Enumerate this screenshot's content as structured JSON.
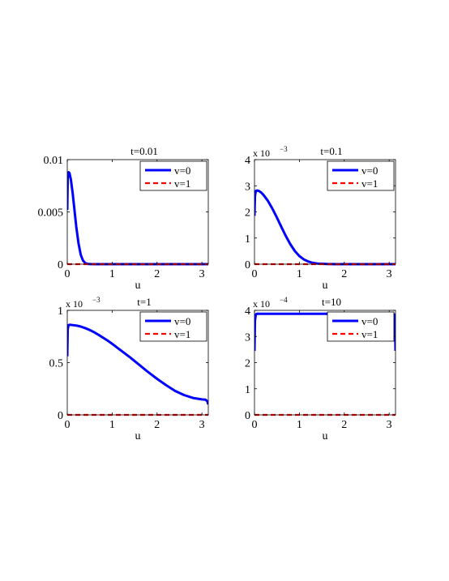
{
  "chart_data": [
    {
      "type": "line",
      "title": "t=0.01",
      "xlabel": "u",
      "ylabel": "",
      "xlim": [
        0,
        3.1416
      ],
      "ylim": [
        0,
        0.01
      ],
      "exponent_label": "",
      "xticks": [
        0,
        1,
        2,
        3
      ],
      "xtick_labels": [
        "0",
        "1",
        "2",
        "3"
      ],
      "yticks": [
        0,
        0.005,
        0.01
      ],
      "ytick_labels": [
        "0",
        "0.005",
        "0.01"
      ],
      "legend_position": "top-right",
      "series": [
        {
          "name": "v=0",
          "color": "#0000ff",
          "style": "solid",
          "x": [
            0,
            0.01,
            0.03,
            0.05,
            0.08,
            0.12,
            0.16,
            0.2,
            0.25,
            0.3,
            0.35,
            0.4,
            0.45,
            0.5,
            0.6,
            0.8,
            1.0,
            1.5,
            2.0,
            2.5,
            3.0,
            3.1416
          ],
          "y": [
            0.0052,
            0.0082,
            0.0088,
            0.0087,
            0.0081,
            0.0068,
            0.0052,
            0.0036,
            0.002,
            0.0009,
            0.00035,
            0.0001,
            3e-05,
            1e-05,
            0,
            0,
            0,
            0,
            0,
            0,
            0,
            0
          ]
        },
        {
          "name": "v=1",
          "color": "#ff0000",
          "style": "dashed",
          "x": [
            0,
            3.1416
          ],
          "y": [
            0,
            0
          ]
        }
      ]
    },
    {
      "type": "line",
      "title": "t=0.1",
      "xlabel": "u",
      "ylabel": "",
      "xlim": [
        0,
        3.1416
      ],
      "ylim": [
        0,
        4
      ],
      "exponent_label": "x 10",
      "exponent_power": "−3",
      "xticks": [
        0,
        1,
        2,
        3
      ],
      "xtick_labels": [
        "0",
        "1",
        "2",
        "3"
      ],
      "yticks": [
        0,
        1,
        2,
        3,
        4
      ],
      "ytick_labels": [
        "0",
        "1",
        "2",
        "3",
        "4"
      ],
      "legend_position": "top-right",
      "series": [
        {
          "name": "v=0",
          "color": "#0000ff",
          "style": "solid",
          "x": [
            0,
            0.01,
            0.03,
            0.06,
            0.1,
            0.15,
            0.2,
            0.3,
            0.4,
            0.5,
            0.6,
            0.7,
            0.8,
            0.9,
            1.0,
            1.1,
            1.2,
            1.3,
            1.4,
            1.6,
            1.8,
            2.0,
            2.5,
            3.0,
            3.1416
          ],
          "y": [
            1.85,
            2.6,
            2.8,
            2.82,
            2.8,
            2.74,
            2.65,
            2.42,
            2.12,
            1.78,
            1.42,
            1.07,
            0.76,
            0.5,
            0.31,
            0.18,
            0.1,
            0.05,
            0.025,
            0.006,
            0.0015,
            0.0003,
            0,
            0,
            0
          ]
        },
        {
          "name": "v=1",
          "color": "#ff0000",
          "style": "dashed",
          "x": [
            0,
            3.1416
          ],
          "y": [
            0,
            0
          ]
        }
      ]
    },
    {
      "type": "line",
      "title": "t=1",
      "xlabel": "u",
      "ylabel": "",
      "xlim": [
        0,
        3.1416
      ],
      "ylim": [
        0,
        1
      ],
      "exponent_label": "x 10",
      "exponent_power": "−3",
      "xticks": [
        0,
        1,
        2,
        3
      ],
      "xtick_labels": [
        "0",
        "1",
        "2",
        "3"
      ],
      "yticks": [
        0,
        0.5,
        1
      ],
      "ytick_labels": [
        "0",
        "0.5",
        "1"
      ],
      "legend_position": "top-right",
      "series": [
        {
          "name": "v=0",
          "color": "#0000ff",
          "style": "solid",
          "x": [
            0,
            0.01,
            0.03,
            0.06,
            0.1,
            0.2,
            0.3,
            0.4,
            0.5,
            0.6,
            0.7,
            0.8,
            0.9,
            1.0,
            1.2,
            1.4,
            1.6,
            1.8,
            2.0,
            2.2,
            2.4,
            2.6,
            2.8,
            3.0,
            3.08,
            3.12,
            3.1416
          ],
          "y": [
            0.56,
            0.82,
            0.86,
            0.862,
            0.86,
            0.855,
            0.845,
            0.83,
            0.812,
            0.79,
            0.765,
            0.738,
            0.71,
            0.68,
            0.615,
            0.55,
            0.48,
            0.41,
            0.345,
            0.285,
            0.23,
            0.19,
            0.162,
            0.148,
            0.145,
            0.13,
            0.1
          ]
        },
        {
          "name": "v=1",
          "color": "#ff0000",
          "style": "dashed",
          "x": [
            0,
            3.1416
          ],
          "y": [
            0,
            0
          ]
        }
      ]
    },
    {
      "type": "line",
      "title": "t=10",
      "xlabel": "u",
      "ylabel": "",
      "xlim": [
        0,
        3.1416
      ],
      "ylim": [
        0,
        4
      ],
      "exponent_label": "x 10",
      "exponent_power": "−4",
      "xticks": [
        0,
        1,
        2,
        3
      ],
      "xtick_labels": [
        "0",
        "1",
        "2",
        "3"
      ],
      "yticks": [
        0,
        1,
        2,
        3,
        4
      ],
      "ytick_labels": [
        "0",
        "1",
        "2",
        "3",
        "4"
      ],
      "legend_position": "top-right",
      "series": [
        {
          "name": "v=0",
          "color": "#0000ff",
          "style": "solid",
          "x": [
            0,
            0.01,
            0.03,
            0.06,
            0.5,
            1.0,
            1.5,
            2.0,
            2.5,
            3.0,
            3.08,
            3.11,
            3.13,
            3.1416
          ],
          "y": [
            2.45,
            3.6,
            3.85,
            3.87,
            3.87,
            3.87,
            3.87,
            3.87,
            3.87,
            3.87,
            3.87,
            3.85,
            3.6,
            2.45
          ]
        },
        {
          "name": "v=1",
          "color": "#ff0000",
          "style": "dashed",
          "x": [
            0,
            3.1416
          ],
          "y": [
            0,
            0
          ]
        }
      ]
    }
  ]
}
